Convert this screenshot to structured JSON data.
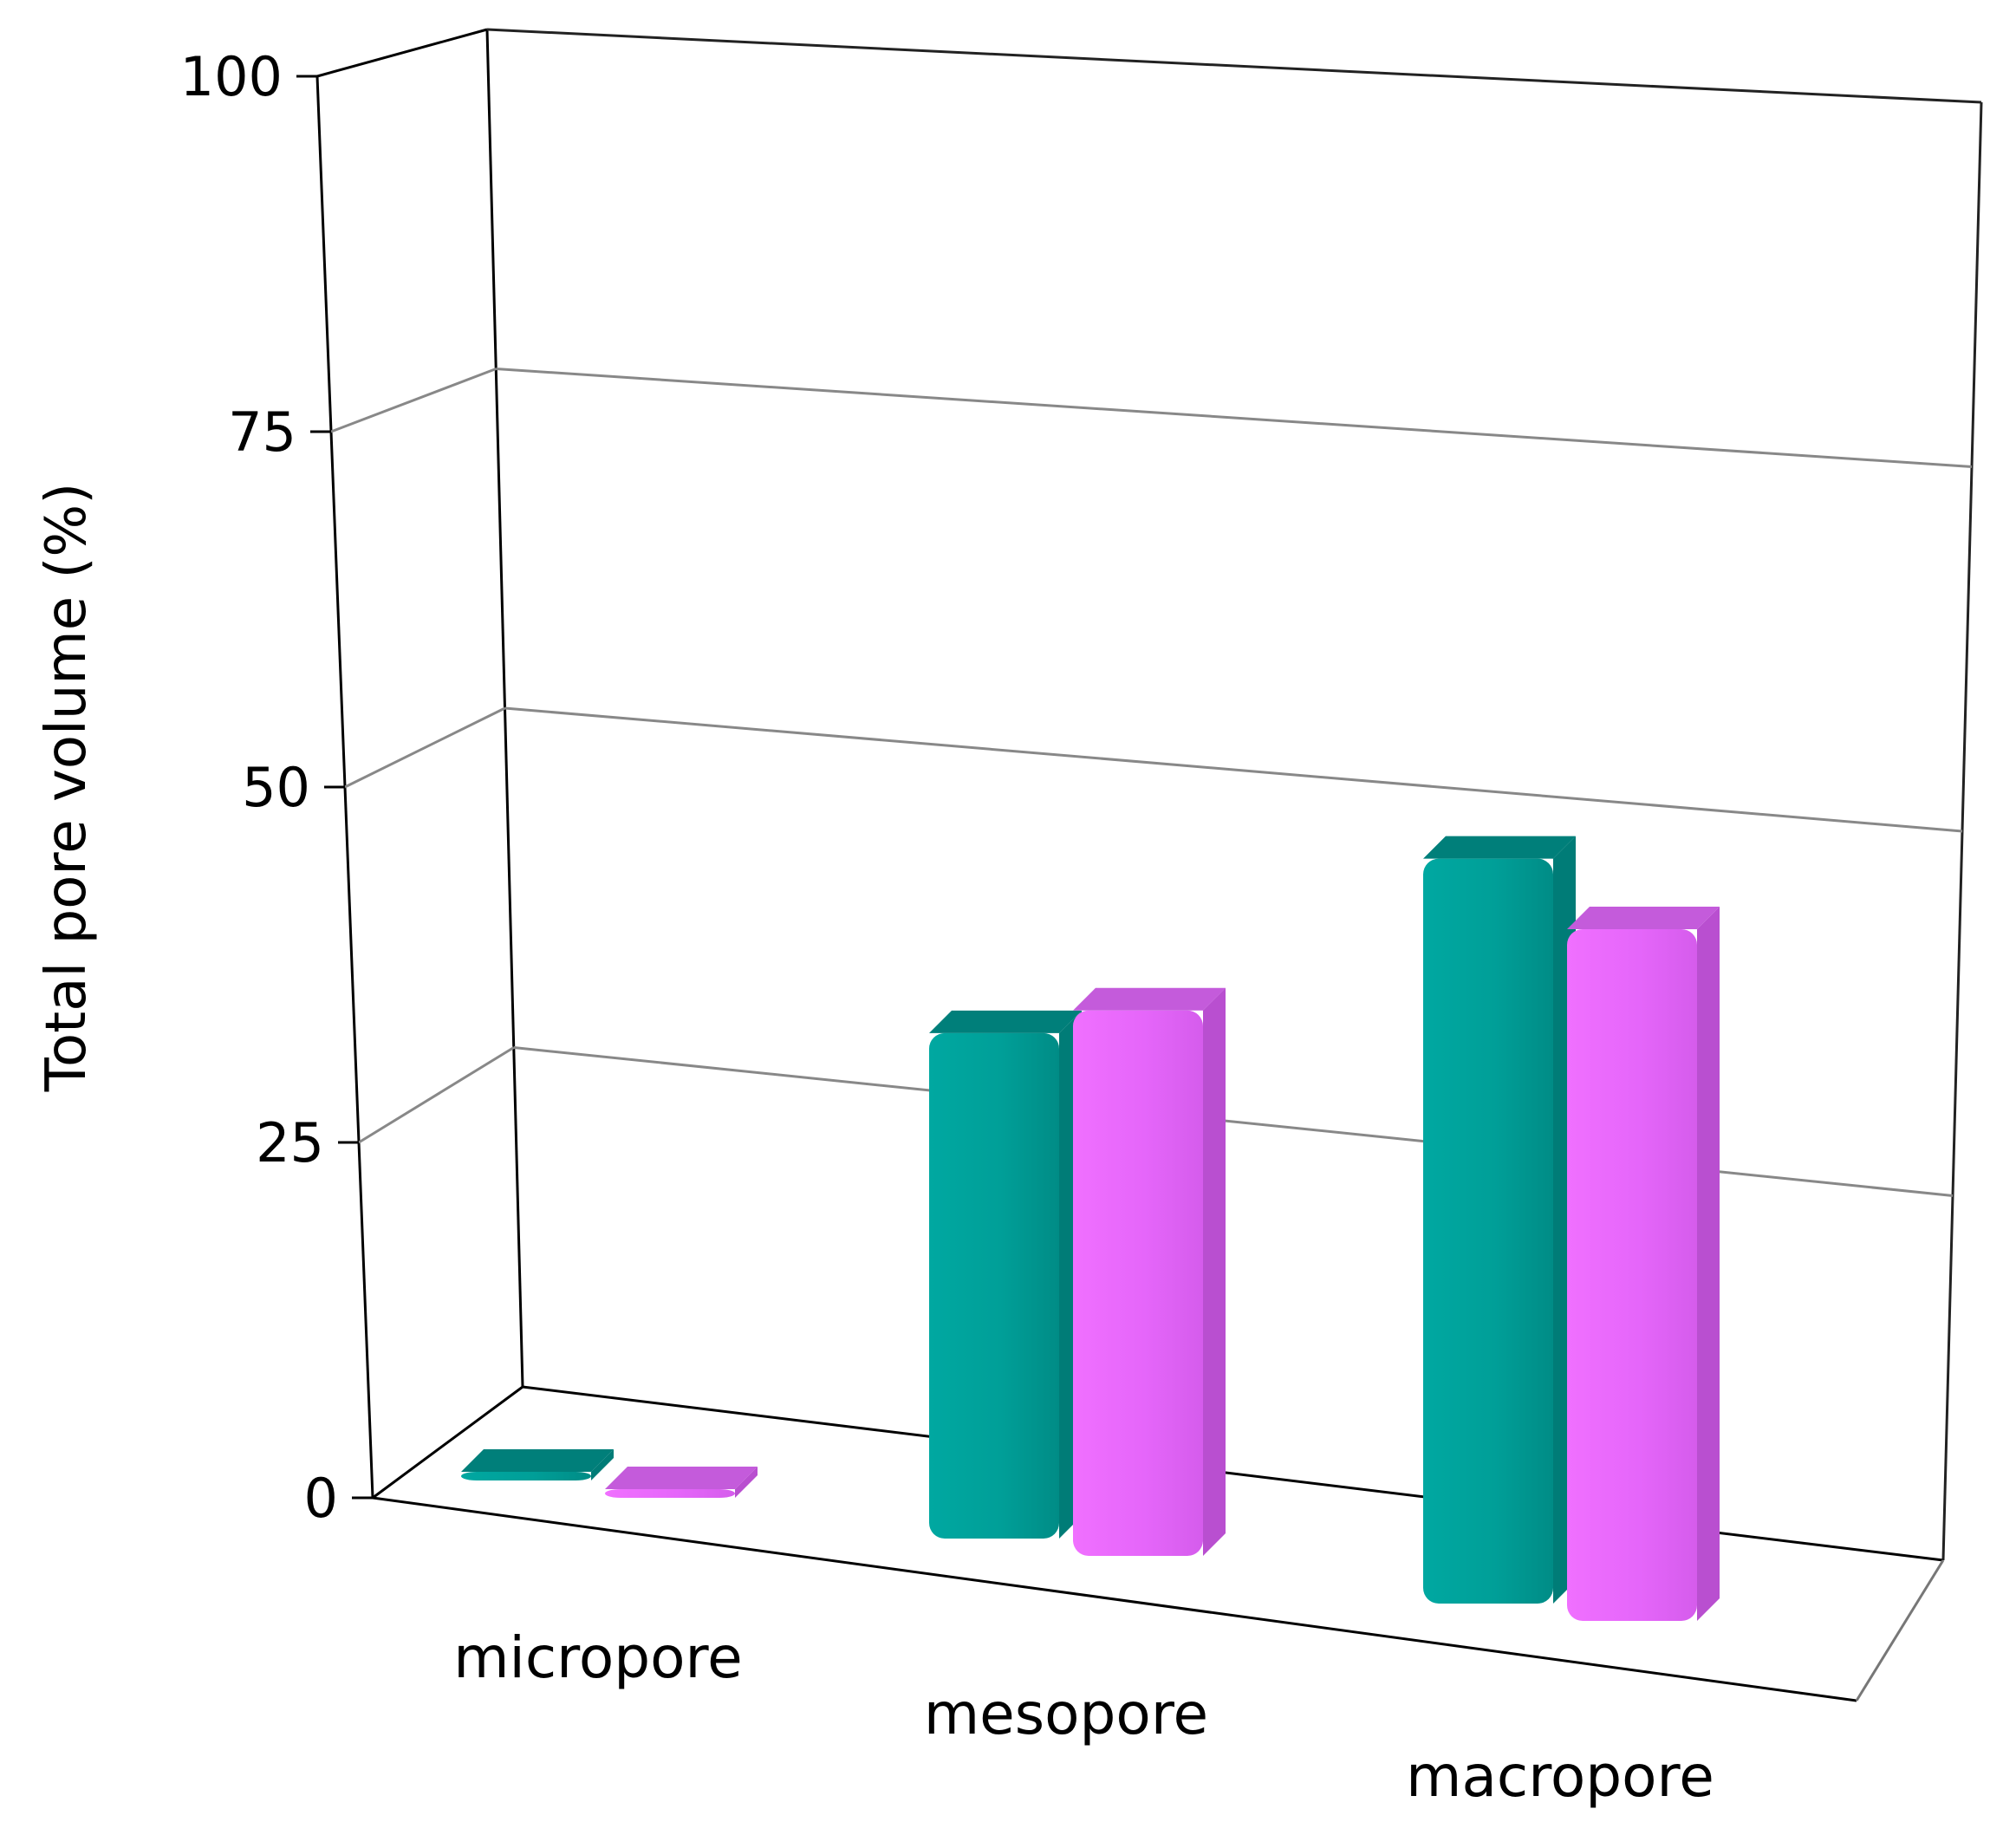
{
  "chart_data": {
    "type": "bar",
    "title": "",
    "xlabel": "",
    "ylabel": "Total pore volume (%)",
    "ylim": [
      0,
      100
    ],
    "yticks": [
      "0",
      "25",
      "50",
      "75",
      "100"
    ],
    "categories": [
      "micropore",
      "mesopore",
      "macropore"
    ],
    "series": [
      {
        "values": [
          0.5,
          38,
          56
        ],
        "color": "#00a19b"
      },
      {
        "values": [
          0.5,
          41,
          52
        ],
        "color": "#e868ff"
      }
    ],
    "grid": true,
    "legend": "none",
    "style": "3d"
  }
}
